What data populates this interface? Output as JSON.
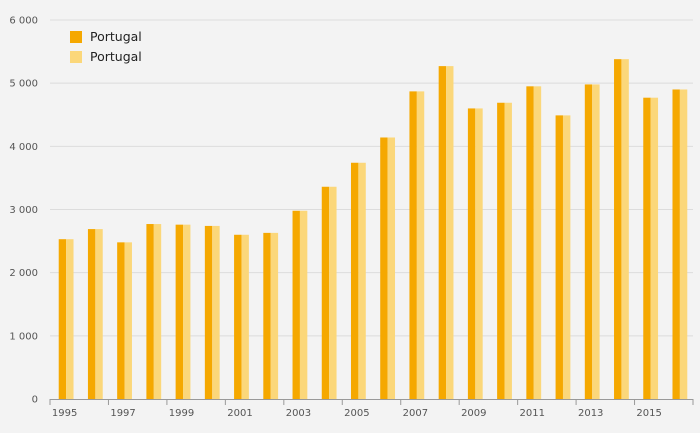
{
  "chart_data": {
    "type": "bar",
    "title": "",
    "xlabel": "",
    "ylabel": "",
    "ylim": [
      0,
      6000
    ],
    "yticks": [
      0,
      1000,
      2000,
      3000,
      4000,
      5000,
      6000
    ],
    "ytick_labels": [
      "0",
      "1 000",
      "2 000",
      "3 000",
      "4 000",
      "5 000",
      "6 000"
    ],
    "grid": true,
    "legend_position": "top-left",
    "categories": [
      "1995",
      "1996",
      "1997",
      "1998",
      "1999",
      "2000",
      "2001",
      "2002",
      "2003",
      "2004",
      "2005",
      "2006",
      "2007",
      "2008",
      "2009",
      "2010",
      "2011",
      "2012",
      "2013",
      "2014",
      "2015",
      "2016"
    ],
    "xtick_labels": [
      "1995",
      "",
      "1997",
      "",
      "1999",
      "",
      "2001",
      "",
      "2003",
      "",
      "2005",
      "",
      "2007",
      "",
      "2009",
      "",
      "2011",
      "",
      "2013",
      "",
      "2015",
      ""
    ],
    "series": [
      {
        "name": "Portugal",
        "color": "#f5a800",
        "values": [
          2530,
          2690,
          2480,
          2770,
          2760,
          2740,
          2600,
          2630,
          2980,
          3360,
          3740,
          4140,
          4870,
          5270,
          4600,
          4690,
          4950,
          4490,
          4980,
          5380,
          4770,
          4900
        ]
      },
      {
        "name": "Portugal",
        "color": "#fbd77a",
        "values": [
          2530,
          2690,
          2480,
          2770,
          2760,
          2740,
          2600,
          2630,
          2980,
          3360,
          3740,
          4140,
          4870,
          5270,
          4600,
          4690,
          4950,
          4490,
          4980,
          5380,
          4770,
          4900
        ]
      }
    ],
    "colors": {
      "grid": "#dcdcdc",
      "axis": "#999999",
      "background": "#f3f3f3"
    }
  }
}
